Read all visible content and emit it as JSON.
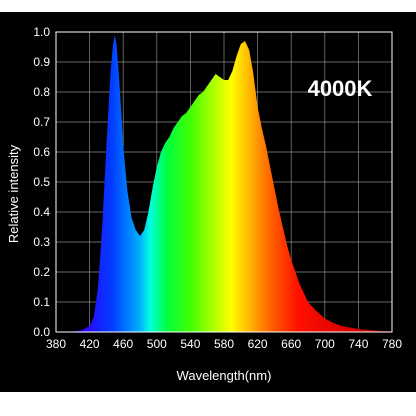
{
  "chart_data": {
    "type": "area",
    "title": "4000K",
    "xlabel": "Wavelength(nm)",
    "ylabel": "Relative intensity",
    "xlim": [
      380,
      780
    ],
    "ylim": [
      0,
      1.0
    ],
    "xticks": [
      "380",
      "420",
      "460",
      "500",
      "540",
      "580",
      "620",
      "660",
      "700",
      "740",
      "780"
    ],
    "yticks": [
      "0.0",
      "0.1",
      "0.2",
      "0.3",
      "0.4",
      "0.5",
      "0.6",
      "0.7",
      "0.8",
      "0.9",
      "1.0"
    ],
    "grid": true,
    "background": "#000000",
    "series": [
      {
        "x": [
          380,
          400,
          410,
          420,
          425,
          430,
          435,
          440,
          445,
          448,
          450,
          452,
          455,
          458,
          460,
          465,
          470,
          475,
          480,
          485,
          490,
          495,
          500,
          505,
          510,
          515,
          520,
          525,
          530,
          535,
          540,
          545,
          550,
          555,
          560,
          565,
          570,
          575,
          580,
          585,
          590,
          595,
          600,
          605,
          610,
          615,
          620,
          625,
          630,
          635,
          640,
          645,
          650,
          655,
          660,
          665,
          670,
          675,
          680,
          690,
          700,
          710,
          720,
          730,
          740,
          750,
          760,
          770,
          780
        ],
        "y": [
          0.0,
          0.002,
          0.005,
          0.02,
          0.05,
          0.15,
          0.35,
          0.62,
          0.87,
          0.96,
          0.99,
          0.96,
          0.85,
          0.72,
          0.62,
          0.47,
          0.38,
          0.34,
          0.32,
          0.34,
          0.4,
          0.48,
          0.55,
          0.6,
          0.63,
          0.65,
          0.68,
          0.7,
          0.72,
          0.73,
          0.75,
          0.77,
          0.79,
          0.8,
          0.82,
          0.84,
          0.86,
          0.85,
          0.84,
          0.84,
          0.87,
          0.92,
          0.96,
          0.97,
          0.94,
          0.86,
          0.75,
          0.68,
          0.62,
          0.55,
          0.48,
          0.41,
          0.35,
          0.29,
          0.24,
          0.2,
          0.16,
          0.13,
          0.1,
          0.07,
          0.045,
          0.03,
          0.02,
          0.015,
          0.01,
          0.007,
          0.005,
          0.003,
          0.002
        ]
      }
    ]
  }
}
